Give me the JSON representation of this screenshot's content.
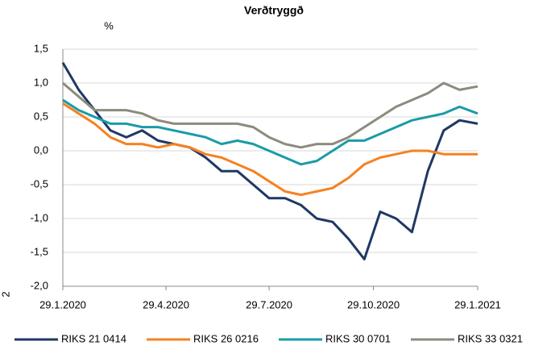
{
  "chart_data": {
    "type": "line",
    "title": "Verðtryggð",
    "y_label": "%",
    "annotation": "2",
    "x": [
      "29.1.2020",
      "12.2.2020",
      "26.2.2020",
      "11.3.2020",
      "25.3.2020",
      "8.4.2020",
      "22.4.2020",
      "6.5.2020",
      "20.5.2020",
      "3.6.2020",
      "17.6.2020",
      "1.7.2020",
      "15.7.2020",
      "29.7.2020",
      "12.8.2020",
      "26.8.2020",
      "9.9.2020",
      "23.9.2020",
      "7.10.2020",
      "21.10.2020",
      "4.11.2020",
      "18.11.2020",
      "2.12.2020",
      "16.12.2020",
      "30.12.2020",
      "13.1.2021",
      "29.1.2021"
    ],
    "series": [
      {
        "name": "RIKS 21 0414",
        "color": "#1f3864",
        "values": [
          1.3,
          0.9,
          0.6,
          0.3,
          0.2,
          0.3,
          0.15,
          0.1,
          0.05,
          -0.1,
          -0.3,
          -0.3,
          -0.5,
          -0.7,
          -0.7,
          -0.8,
          -1.0,
          -1.05,
          -1.3,
          -1.6,
          -0.9,
          -1.0,
          -1.2,
          -0.3,
          0.3,
          0.45,
          0.4
        ]
      },
      {
        "name": "RIKS 26 0216",
        "color": "#f58220",
        "values": [
          0.7,
          0.55,
          0.4,
          0.2,
          0.1,
          0.1,
          0.05,
          0.1,
          0.05,
          -0.05,
          -0.1,
          -0.2,
          -0.3,
          -0.45,
          -0.6,
          -0.65,
          -0.6,
          -0.55,
          -0.4,
          -0.2,
          -0.1,
          -0.05,
          0.0,
          0.0,
          -0.05,
          -0.05,
          -0.05
        ]
      },
      {
        "name": "RIKS 30 0701",
        "color": "#1a9ba8",
        "values": [
          0.75,
          0.6,
          0.5,
          0.4,
          0.4,
          0.35,
          0.35,
          0.3,
          0.25,
          0.2,
          0.1,
          0.15,
          0.1,
          0.0,
          -0.1,
          -0.2,
          -0.15,
          0.0,
          0.15,
          0.15,
          0.25,
          0.35,
          0.45,
          0.5,
          0.55,
          0.65,
          0.55
        ]
      },
      {
        "name": "RIKS 33 0321",
        "color": "#8c8b7e",
        "values": [
          1.0,
          0.8,
          0.6,
          0.6,
          0.6,
          0.55,
          0.45,
          0.4,
          0.4,
          0.4,
          0.4,
          0.4,
          0.35,
          0.2,
          0.1,
          0.05,
          0.1,
          0.1,
          0.2,
          0.35,
          0.5,
          0.65,
          0.75,
          0.85,
          1.0,
          0.9,
          0.95
        ]
      }
    ],
    "xlim": [
      "29.1.2020",
      "29.1.2021"
    ],
    "xticks": [
      "29.1.2020",
      "29.4.2020",
      "29.7.2020",
      "29.10.2020",
      "29.1.2021"
    ],
    "ylim": [
      -2.0,
      1.5
    ],
    "yticks": [
      {
        "value": -2.0,
        "label": "-2,0"
      },
      {
        "value": -1.5,
        "label": "-1,5"
      },
      {
        "value": -1.0,
        "label": "-1,0"
      },
      {
        "value": -0.5,
        "label": "-0,5"
      },
      {
        "value": 0.0,
        "label": "0,0"
      },
      {
        "value": 0.5,
        "label": "0,5"
      },
      {
        "value": 1.0,
        "label": "1,0"
      },
      {
        "value": 1.5,
        "label": "1,5"
      }
    ],
    "grid": true,
    "legend": "bottom"
  }
}
